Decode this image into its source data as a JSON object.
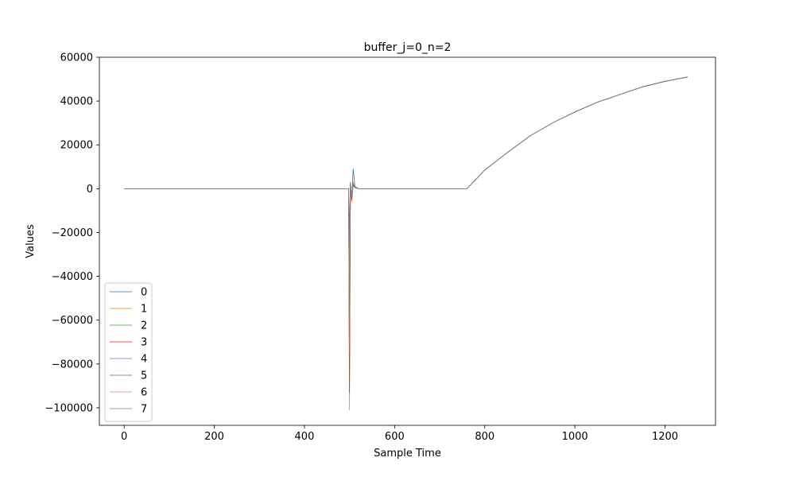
{
  "chart_data": {
    "type": "line",
    "title": "buffer_j=0_n=2",
    "xlabel": "Sample Time",
    "ylabel": "Values",
    "xlim": [
      -55,
      1312
    ],
    "ylim": [
      -108000,
      60000
    ],
    "xticks": [
      0,
      200,
      400,
      600,
      800,
      1000,
      1200
    ],
    "yticks": [
      -100000,
      -80000,
      -60000,
      -40000,
      -20000,
      0,
      20000,
      40000,
      60000
    ],
    "xtick_labels": [
      "0",
      "200",
      "400",
      "600",
      "800",
      "1000",
      "1200"
    ],
    "ytick_labels": [
      "−100000",
      "−80000",
      "−60000",
      "−40000",
      "−20000",
      "0",
      "20000",
      "40000",
      "60000"
    ],
    "legend_position": "lower-left",
    "series": [
      {
        "name": "0",
        "color": "#1f77b4",
        "x": [
          0,
          498,
          500,
          502,
          505,
          508,
          512,
          520,
          540,
          760,
          770,
          800,
          850,
          900,
          950,
          1000,
          1050,
          1100,
          1150,
          1200,
          1250
        ],
        "y": [
          0,
          0,
          -20000,
          3000,
          -5000,
          9000,
          1000,
          0,
          0,
          0,
          2000,
          8500,
          16500,
          24000,
          30000,
          35000,
          39500,
          43000,
          46500,
          49000,
          51000
        ]
      },
      {
        "name": "1",
        "color": "#ff7f0e",
        "x": [
          0,
          498,
          500,
          502,
          505,
          508,
          512,
          520,
          540,
          760,
          770,
          800,
          850,
          900,
          950,
          1000,
          1050,
          1100,
          1150,
          1200,
          1250
        ],
        "y": [
          0,
          0,
          -101000,
          2000,
          -6000,
          3000,
          500,
          0,
          0,
          0,
          2000,
          8500,
          16500,
          24000,
          30000,
          35000,
          39500,
          43000,
          46500,
          49000,
          51000
        ]
      },
      {
        "name": "2",
        "color": "#2ca02c",
        "x": [
          0,
          498,
          500,
          502,
          505,
          508,
          512,
          520,
          540,
          760,
          770,
          800,
          850,
          900,
          950,
          1000,
          1050,
          1100,
          1150,
          1200,
          1250
        ],
        "y": [
          0,
          0,
          -30000,
          2500,
          -4000,
          2000,
          500,
          0,
          0,
          0,
          2000,
          8500,
          16500,
          24000,
          30000,
          35000,
          39500,
          43000,
          46500,
          49000,
          51000
        ]
      },
      {
        "name": "3",
        "color": "#d62728",
        "x": [
          0,
          498,
          500,
          502,
          505,
          508,
          512,
          520,
          540,
          760,
          770,
          800,
          850,
          900,
          950,
          1000,
          1050,
          1100,
          1150,
          1200,
          1250
        ],
        "y": [
          0,
          0,
          -93000,
          1500,
          -5000,
          2000,
          500,
          0,
          0,
          0,
          2000,
          8500,
          16500,
          24000,
          30000,
          35000,
          39500,
          43000,
          46500,
          49000,
          51000
        ]
      },
      {
        "name": "4",
        "color": "#9467bd",
        "x": [
          0,
          498,
          500,
          502,
          505,
          508,
          512,
          520,
          540,
          760,
          770,
          800,
          850,
          900,
          950,
          1000,
          1050,
          1100,
          1150,
          1200,
          1250
        ],
        "y": [
          0,
          0,
          -40000,
          2000,
          -3000,
          1500,
          500,
          0,
          0,
          0,
          2000,
          8500,
          16500,
          24000,
          30000,
          35000,
          39500,
          43000,
          46500,
          49000,
          51000
        ]
      },
      {
        "name": "5",
        "color": "#8c564b",
        "x": [
          0,
          498,
          500,
          502,
          505,
          508,
          512,
          520,
          540,
          760,
          770,
          800,
          850,
          900,
          950,
          1000,
          1050,
          1100,
          1150,
          1200,
          1250
        ],
        "y": [
          0,
          0,
          -85000,
          2000,
          -4000,
          1500,
          500,
          0,
          0,
          0,
          2000,
          8500,
          16500,
          24000,
          30000,
          35000,
          39500,
          43000,
          46500,
          49000,
          51000
        ]
      },
      {
        "name": "6",
        "color": "#e377c2",
        "x": [
          0,
          498,
          500,
          502,
          505,
          508,
          512,
          520,
          540,
          760,
          770,
          800,
          850,
          900,
          950,
          1000,
          1050,
          1100,
          1150,
          1200,
          1250
        ],
        "y": [
          0,
          0,
          -48000,
          1500,
          -3000,
          1500,
          500,
          0,
          0,
          0,
          2000,
          8500,
          16500,
          24000,
          30000,
          35000,
          39500,
          43000,
          46500,
          49000,
          51000
        ]
      },
      {
        "name": "7",
        "color": "#7f7f7f",
        "x": [
          0,
          498,
          500,
          502,
          505,
          508,
          512,
          520,
          540,
          760,
          770,
          800,
          850,
          900,
          950,
          1000,
          1050,
          1100,
          1150,
          1200,
          1250
        ],
        "y": [
          0,
          0,
          -75000,
          1500,
          -3500,
          1500,
          500,
          0,
          0,
          0,
          2000,
          8500,
          16500,
          24000,
          30000,
          35000,
          39500,
          43000,
          46500,
          49000,
          51000
        ]
      }
    ]
  }
}
